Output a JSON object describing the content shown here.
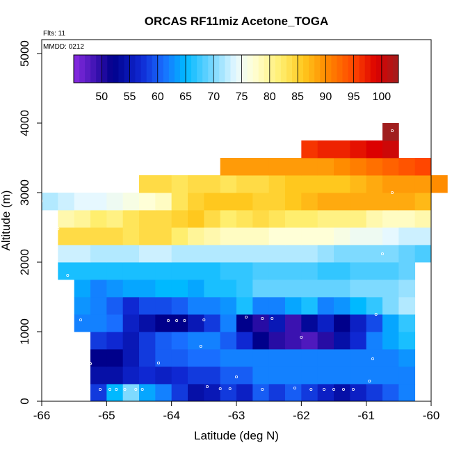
{
  "chart_data": {
    "type": "heatmap",
    "title": "ORCAS RF11miz Acetone_TOGA",
    "annotations": {
      "flights": "Flts: 11",
      "date": "MMDD: 0212"
    },
    "xlabel": "Latitude (deg N)",
    "ylabel": "Altitude (m)",
    "xlim": [
      -66,
      -60
    ],
    "ylim": [
      0,
      5200
    ],
    "x_ticks": [
      -66,
      -65,
      -64,
      -63,
      -62,
      -61,
      -60
    ],
    "x_tick_labels": [
      "-66",
      "-65",
      "-64",
      "-63",
      "-62",
      "-61",
      "-60"
    ],
    "y_ticks": [
      0,
      1000,
      2000,
      3000,
      4000,
      5000
    ],
    "y_tick_labels": [
      "0",
      "1000",
      "2000",
      "3000",
      "4000",
      "5000"
    ],
    "colorbar": {
      "min": 45,
      "max": 103,
      "ticks": [
        50,
        55,
        60,
        65,
        70,
        75,
        80,
        85,
        90,
        95,
        100
      ],
      "tick_labels": [
        "50",
        "55",
        "60",
        "65",
        "70",
        "75",
        "80",
        "85",
        "90",
        "95",
        "100"
      ]
    },
    "lat_cell_width": 0.25,
    "alt_cell_height": 250,
    "rows": [
      {
        "alt": 0,
        "lat_start": -65.25,
        "values": [
          58,
          65,
          70,
          64,
          62,
          58,
          54,
          55,
          58,
          56,
          60,
          58,
          60,
          58,
          56,
          54,
          56,
          58,
          60,
          62
        ]
      },
      {
        "alt": 250,
        "lat_start": -65.25,
        "values": [
          54,
          54,
          56,
          57,
          56,
          57,
          58,
          58,
          60,
          60,
          62,
          62,
          62,
          62,
          62,
          62,
          62,
          62,
          62,
          62
        ]
      },
      {
        "alt": 500,
        "lat_start": -65.25,
        "values": [
          52,
          52,
          55,
          58,
          60,
          60,
          61,
          61,
          62,
          62,
          62,
          62,
          62,
          62,
          62,
          62,
          62,
          62,
          62,
          63
        ]
      },
      {
        "alt": 750,
        "lat_start": -65.25,
        "values": [
          58,
          57,
          55,
          58,
          60,
          61,
          62,
          62,
          60,
          57,
          52,
          50,
          49,
          48,
          50,
          54,
          57,
          62,
          64,
          66
        ]
      },
      {
        "alt": 1000,
        "lat_start": -65.5,
        "values": [
          62,
          62,
          61,
          56,
          54,
          52,
          52,
          55,
          58,
          62,
          52,
          50,
          55,
          49,
          53,
          56,
          52,
          56,
          59,
          64,
          67
        ]
      },
      {
        "alt": 1250,
        "lat_start": -65.5,
        "values": [
          63,
          62,
          60,
          57,
          59,
          59,
          60,
          62,
          62,
          63,
          66,
          62,
          62,
          64,
          66,
          62,
          63,
          65,
          67,
          70,
          72
        ]
      },
      {
        "alt": 1500,
        "lat_start": -65.5,
        "values": [
          64,
          62,
          63,
          64,
          64,
          65,
          65,
          64,
          66,
          66,
          67,
          69,
          69,
          69,
          69,
          69,
          69,
          70,
          70,
          70,
          71
        ]
      },
      {
        "alt": 1750,
        "lat_start": -65.75,
        "values": [
          66,
          66,
          66,
          66,
          66,
          66,
          66,
          66,
          66,
          66,
          67,
          67,
          68,
          68,
          68,
          68,
          67,
          67,
          68,
          68,
          68,
          69
        ]
      },
      {
        "alt": 2000,
        "lat_start": -65.75,
        "values": [
          73,
          73,
          72,
          72,
          72,
          73,
          73,
          72,
          72,
          72,
          72,
          72,
          72,
          72,
          72,
          72,
          71,
          70,
          70,
          70,
          70,
          69,
          68
        ]
      },
      {
        "alt": 2250,
        "lat_start": -65.75,
        "values": [
          84,
          84,
          84,
          84,
          83,
          84,
          84,
          82,
          80,
          79,
          78,
          78,
          78,
          77,
          77,
          77,
          77,
          76,
          75,
          75,
          74,
          73,
          73
        ]
      },
      {
        "alt": 2500,
        "lat_start": -65.75,
        "values": [
          79,
          80,
          82,
          81,
          83,
          84,
          84,
          85,
          86,
          84,
          82,
          83,
          84,
          83,
          82,
          82,
          81,
          81,
          81,
          79,
          78,
          78,
          79
        ]
      },
      {
        "alt": 2750,
        "lat_start": -66,
        "values": [
          72,
          73,
          74,
          74,
          75,
          76,
          77,
          78,
          83,
          85,
          86,
          86,
          86,
          85,
          85,
          86,
          87,
          88,
          88,
          88,
          88,
          88,
          88,
          87
        ]
      },
      {
        "alt": 3000,
        "lat_start": -64.5,
        "values": [
          84,
          84,
          83,
          84,
          84,
          83,
          84,
          84,
          85,
          86,
          86,
          86,
          86,
          87,
          88,
          89,
          89,
          89,
          90
        ]
      },
      {
        "alt": 3250,
        "lat_start": -63.25,
        "values": [
          89,
          89,
          89,
          89,
          89,
          89,
          89,
          90,
          91,
          92,
          93,
          94,
          95
        ]
      },
      {
        "alt": 3500,
        "lat_start": -62,
        "values": [
          96,
          97,
          97,
          98,
          99,
          100
        ]
      },
      {
        "alt": 3750,
        "lat_start": -60.75,
        "values": [
          103
        ]
      }
    ],
    "sample_markers": [
      [
        -65.1,
        170
      ],
      [
        -64.95,
        170
      ],
      [
        -64.85,
        170
      ],
      [
        -64.72,
        170
      ],
      [
        -64.55,
        170
      ],
      [
        -64.45,
        170
      ],
      [
        -63.45,
        210
      ],
      [
        -63.25,
        180
      ],
      [
        -63.1,
        180
      ],
      [
        -62.6,
        170
      ],
      [
        -62.1,
        190
      ],
      [
        -61.85,
        170
      ],
      [
        -61.65,
        170
      ],
      [
        -61.5,
        170
      ],
      [
        -61.35,
        170
      ],
      [
        -61.2,
        170
      ],
      [
        -60.95,
        290
      ],
      [
        -63.0,
        350
      ],
      [
        -65.25,
        540
      ],
      [
        -64.2,
        550
      ],
      [
        -60.9,
        610
      ],
      [
        -63.55,
        790
      ],
      [
        -62.0,
        920
      ],
      [
        -65.4,
        1170
      ],
      [
        -64.05,
        1160
      ],
      [
        -63.92,
        1160
      ],
      [
        -63.8,
        1160
      ],
      [
        -63.5,
        1170
      ],
      [
        -62.85,
        1210
      ],
      [
        -62.6,
        1190
      ],
      [
        -62.45,
        1190
      ],
      [
        -60.85,
        1250
      ],
      [
        -65.6,
        1810
      ],
      [
        -60.75,
        2120
      ],
      [
        -65.75,
        2480
      ],
      [
        -66,
        2880
      ],
      [
        -60.6,
        3000
      ],
      [
        -60.6,
        3890
      ]
    ]
  }
}
